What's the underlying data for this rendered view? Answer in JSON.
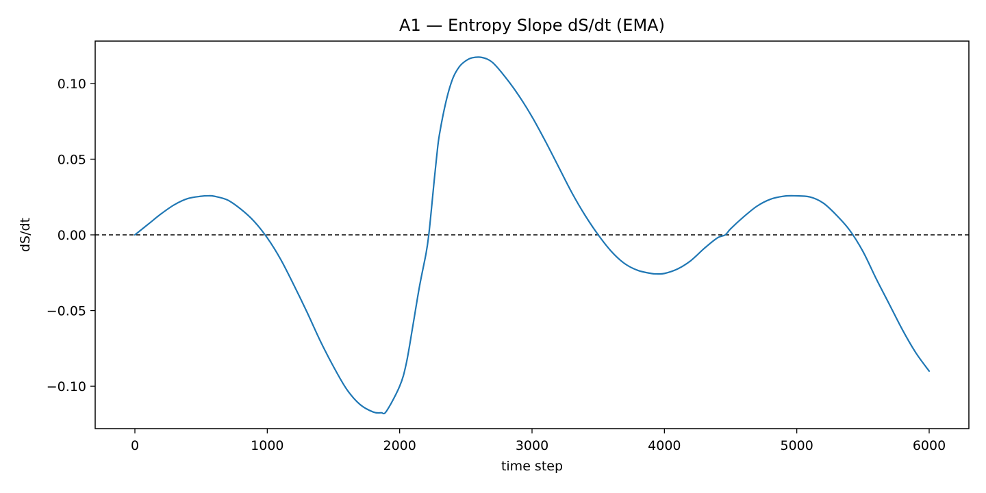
{
  "chart_data": {
    "type": "line",
    "title": "A1 — Entropy Slope dS/dt (EMA)",
    "xlabel": "time step",
    "ylabel": "dS/dt",
    "xlim": [
      -300,
      6300
    ],
    "ylim": [
      -0.128,
      0.128
    ],
    "xticks": [
      0,
      1000,
      2000,
      3000,
      4000,
      5000,
      6000
    ],
    "xtick_labels": [
      "0",
      "1000",
      "2000",
      "3000",
      "4000",
      "5000",
      "6000"
    ],
    "yticks": [
      -0.1,
      -0.05,
      0.0,
      0.05,
      0.1
    ],
    "ytick_labels": [
      "−0.10",
      "−0.05",
      "0.00",
      "0.05",
      "0.10"
    ],
    "grid": false,
    "reference_line": {
      "y": 0.0,
      "style": "dashed",
      "color": "#000000"
    },
    "series": [
      {
        "color": "#1f77b4",
        "x": [
          0,
          100,
          200,
          300,
          400,
          500,
          550,
          600,
          700,
          800,
          900,
          1000,
          1100,
          1200,
          1300,
          1400,
          1500,
          1600,
          1700,
          1800,
          1860,
          1900,
          2000,
          2050,
          2100,
          2150,
          2200,
          2220,
          2240,
          2260,
          2280,
          2300,
          2350,
          2400,
          2450,
          2500,
          2550,
          2620,
          2700,
          2800,
          2900,
          3000,
          3100,
          3200,
          3300,
          3400,
          3500,
          3600,
          3700,
          3800,
          3900,
          3940,
          4000,
          4100,
          4200,
          4300,
          4400,
          4460,
          4500,
          4600,
          4700,
          4800,
          4900,
          4980,
          5100,
          5200,
          5300,
          5400,
          5500,
          5600,
          5700,
          5800,
          5900,
          6000
        ],
        "y": [
          0.0,
          0.007,
          0.014,
          0.02,
          0.024,
          0.0255,
          0.0258,
          0.0255,
          0.023,
          0.017,
          0.009,
          -0.002,
          -0.016,
          -0.033,
          -0.051,
          -0.07,
          -0.087,
          -0.102,
          -0.112,
          -0.117,
          -0.1175,
          -0.1165,
          -0.1,
          -0.085,
          -0.06,
          -0.034,
          -0.012,
          0.0,
          0.017,
          0.035,
          0.052,
          0.066,
          0.088,
          0.103,
          0.111,
          0.115,
          0.117,
          0.1172,
          0.114,
          0.104,
          0.092,
          0.078,
          0.062,
          0.045,
          0.028,
          0.013,
          0.0,
          -0.011,
          -0.019,
          -0.0235,
          -0.0255,
          -0.0258,
          -0.0255,
          -0.0225,
          -0.017,
          -0.009,
          -0.002,
          0.0,
          0.004,
          0.012,
          0.019,
          0.0235,
          0.0255,
          0.0258,
          0.025,
          0.021,
          0.013,
          0.003,
          -0.011,
          -0.029,
          -0.046,
          -0.063,
          -0.078,
          -0.09
        ]
      }
    ]
  }
}
